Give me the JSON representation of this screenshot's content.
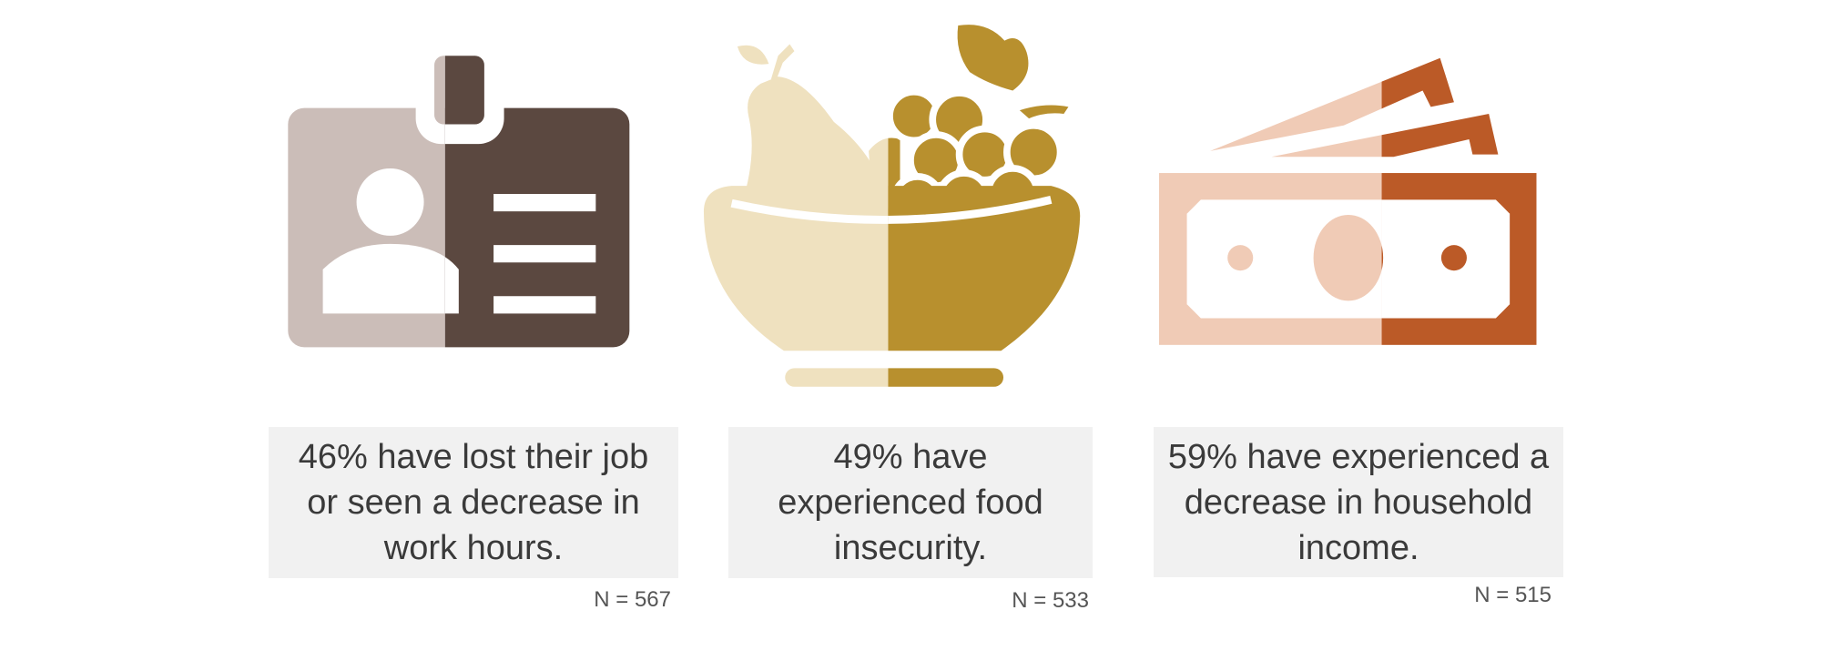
{
  "items": [
    {
      "value": 46,
      "value_label": "46%",
      "text": "have lost their job or seen a decrease in work hours.",
      "n_label": "N = 567",
      "light_color": "#cbbdb8",
      "dark_color": "#5b4840"
    },
    {
      "value": 49,
      "value_label": "49%",
      "text": "have experienced food insecurity.",
      "n_label": "N = 533",
      "light_color": "#efe1bf",
      "dark_color": "#b8902e"
    },
    {
      "value": 59,
      "value_label": "59%",
      "text": "have experienced a decrease in household income.",
      "n_label": "N = 515",
      "light_color": "#f0cbb6",
      "dark_color": "#bb5a27"
    }
  ]
}
